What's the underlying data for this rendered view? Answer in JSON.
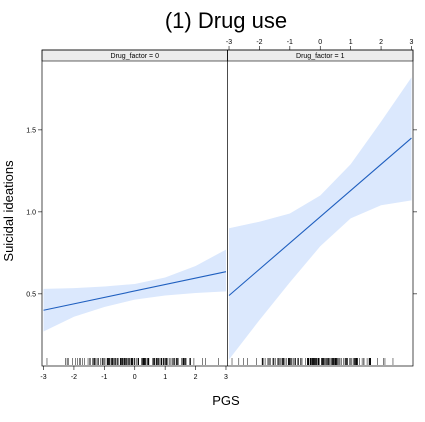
{
  "chart_data": {
    "type": "line",
    "title": "(1) Drug use",
    "xlabel": "PGS",
    "ylabel": "Suicidal ideations",
    "xlim": [
      -3.05,
      3.05
    ],
    "ylim": [
      0.06,
      1.92
    ],
    "x_ticks": [
      -3,
      -2,
      -1,
      0,
      1,
      2,
      3
    ],
    "x_tick_labels": [
      "-3",
      "-2",
      "-1",
      "0",
      "1",
      "2",
      "3"
    ],
    "y_ticks": [
      0.5,
      1.0,
      1.5
    ],
    "y_tick_labels": [
      "0.5",
      "1.0",
      "1.5"
    ],
    "grid": false,
    "colors": {
      "line": "#1f5fbf",
      "ci_band": "#dbe8fd",
      "strip": "#ececec",
      "rug": "#000000"
    },
    "panels": [
      {
        "strip_label": "Drug_factor = 0",
        "x": [
          -3,
          3
        ],
        "fit": [
          0.4,
          0.635
        ],
        "ci_x": [
          -3,
          -2,
          -1,
          0,
          1,
          2,
          3
        ],
        "ci_lower": [
          0.27,
          0.36,
          0.42,
          0.465,
          0.49,
          0.505,
          0.515
        ],
        "ci_upper": [
          0.53,
          0.535,
          0.545,
          0.56,
          0.6,
          0.67,
          0.77
        ]
      },
      {
        "strip_label": "Drug_factor = 1",
        "x": [
          -3,
          3
        ],
        "fit": [
          0.49,
          1.45
        ],
        "ci_x": [
          -3,
          -2,
          -1,
          0,
          1,
          2,
          3
        ],
        "ci_lower": [
          0.1,
          0.34,
          0.57,
          0.79,
          0.96,
          1.04,
          1.07
        ],
        "ci_upper": [
          0.9,
          0.94,
          0.99,
          1.1,
          1.29,
          1.55,
          1.82
        ]
      }
    ]
  }
}
